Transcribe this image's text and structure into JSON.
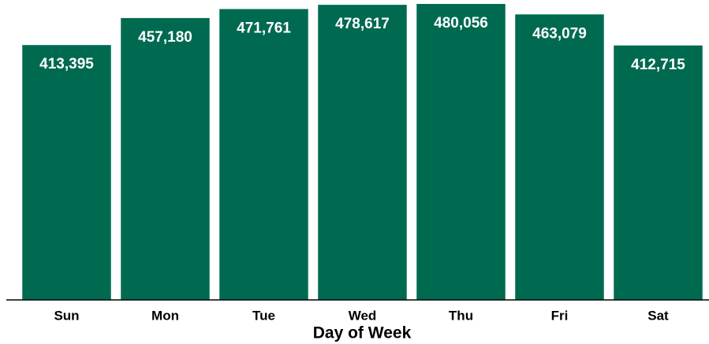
{
  "chart_data": {
    "type": "bar",
    "x_label": "Day of Week",
    "categories": [
      "Sun",
      "Mon",
      "Tue",
      "Wed",
      "Thu",
      "Fri",
      "Sat"
    ],
    "values": [
      413395,
      457180,
      471761,
      478617,
      480056,
      463079,
      412715
    ],
    "value_labels": [
      "413,395",
      "457,180",
      "471,761",
      "478,617",
      "480,056",
      "463,079",
      "412,715"
    ],
    "color": "#006a51"
  }
}
